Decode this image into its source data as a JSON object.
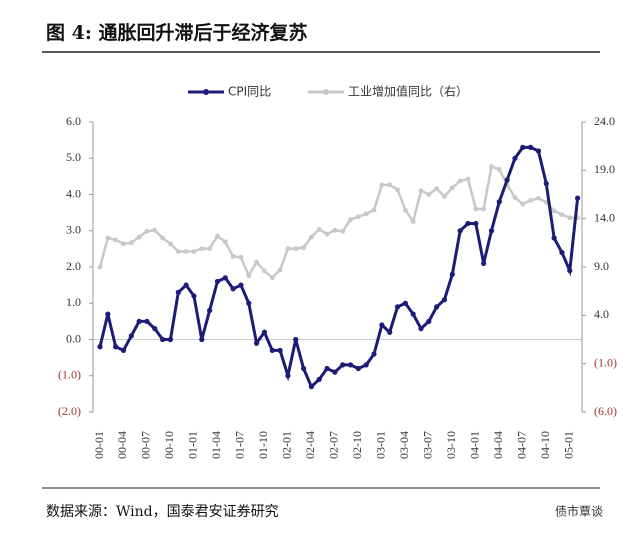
{
  "chart_data": {
    "type": "line",
    "title": "图 4:  通胀回升滞后于经济复苏",
    "source": "数据来源：Wind，国泰君安证券研究",
    "watermark": "债市覃谈",
    "categories": [
      "00-01",
      null,
      null,
      "00-04",
      null,
      null,
      "00-07",
      null,
      null,
      "00-10",
      null,
      null,
      "01-01",
      null,
      null,
      "01-04",
      null,
      null,
      "01-07",
      null,
      null,
      "01-10",
      null,
      null,
      "02-01",
      null,
      null,
      "02-04",
      null,
      null,
      "02-07",
      null,
      null,
      "02-10",
      null,
      null,
      "03-01",
      null,
      null,
      "03-04",
      null,
      null,
      "03-07",
      null,
      null,
      "03-10",
      null,
      null,
      "04-01",
      null,
      null,
      "04-04",
      null,
      null,
      "04-07",
      null,
      null,
      "04-10",
      null,
      null,
      "05-01",
      null
    ],
    "series": [
      {
        "name": "CPI同比",
        "color": "#1c1c78",
        "axis": "y",
        "values": [
          -0.2,
          0.7,
          -0.2,
          -0.3,
          0.1,
          0.5,
          0.5,
          0.3,
          0.0,
          0.0,
          1.3,
          1.5,
          1.2,
          0.0,
          0.8,
          1.6,
          1.7,
          1.4,
          1.5,
          1.0,
          -0.1,
          0.2,
          -0.3,
          -0.3,
          -1.0,
          0.0,
          -0.8,
          -1.3,
          -1.1,
          -0.8,
          -0.9,
          -0.7,
          -0.7,
          -0.8,
          -0.7,
          -0.4,
          0.4,
          0.2,
          0.9,
          1.0,
          0.7,
          0.3,
          0.5,
          0.9,
          1.1,
          1.8,
          3.0,
          3.2,
          3.2,
          2.1,
          3.0,
          3.8,
          4.4,
          5.0,
          5.3,
          5.3,
          5.2,
          4.3,
          2.8,
          2.4,
          1.9,
          3.9
        ]
      },
      {
        "name": "工业增加值同比（右）",
        "color": "#c8c8c8",
        "axis": "y2",
        "values": [
          9.0,
          12.0,
          11.8,
          11.4,
          11.5,
          12.1,
          12.7,
          12.8,
          12.0,
          11.4,
          10.6,
          10.6,
          10.6,
          10.9,
          10.9,
          12.2,
          11.6,
          10.1,
          10.0,
          8.1,
          9.5,
          8.6,
          7.9,
          8.7,
          10.9,
          10.9,
          11.0,
          12.1,
          12.9,
          12.4,
          12.8,
          12.7,
          13.9,
          14.2,
          14.5,
          14.9,
          17.5,
          17.5,
          17.0,
          14.9,
          13.7,
          16.9,
          16.5,
          17.1,
          16.3,
          17.2,
          17.9,
          18.1,
          15.0,
          15.0,
          19.4,
          19.1,
          17.5,
          16.2,
          15.5,
          15.9,
          16.1,
          15.7,
          14.8,
          14.4,
          14.1,
          14.1
        ]
      }
    ],
    "ylim": [
      -2,
      6
    ],
    "yticks": [
      {
        "value": 6,
        "label": "6.0"
      },
      {
        "value": 5,
        "label": "5.0"
      },
      {
        "value": 4,
        "label": "4.0"
      },
      {
        "value": 3,
        "label": "3.0"
      },
      {
        "value": 2,
        "label": "2.0"
      },
      {
        "value": 1,
        "label": "1.0"
      },
      {
        "value": 0,
        "label": "0.0"
      },
      {
        "value": -1,
        "label": "(1.0)"
      },
      {
        "value": -2,
        "label": "(2.0)"
      }
    ],
    "y2lim": [
      -6,
      24
    ],
    "y2ticks": [
      {
        "value": 24,
        "label": "24.0"
      },
      {
        "value": 19,
        "label": "19.0"
      },
      {
        "value": 14,
        "label": "14.0"
      },
      {
        "value": 9,
        "label": "9.0"
      },
      {
        "value": 4,
        "label": "4.0"
      },
      {
        "value": -1,
        "label": "(1.0)"
      },
      {
        "value": -6,
        "label": "(6.0)"
      }
    ],
    "negative_color": "#a8322f",
    "legend": "top"
  }
}
